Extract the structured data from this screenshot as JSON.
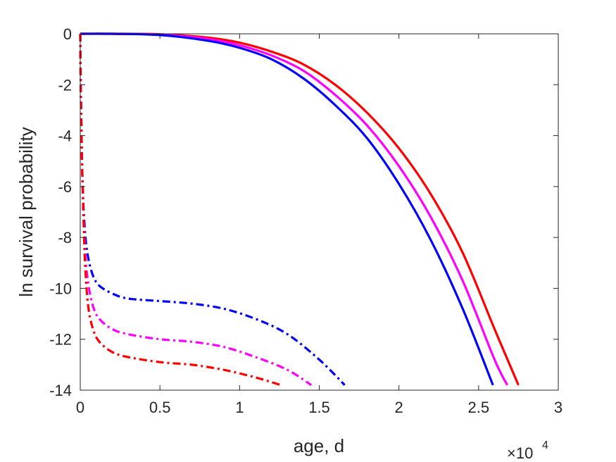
{
  "chart_data": {
    "type": "line",
    "xlabel": "age, d",
    "ylabel": "ln survival probability",
    "x_multiplier_label": "×10",
    "x_multiplier_exponent": "4",
    "xlim": [
      0,
      30000
    ],
    "ylim": [
      -14,
      0
    ],
    "x_ticks": [
      0,
      5000,
      10000,
      15000,
      20000,
      25000,
      30000
    ],
    "x_tick_labels": [
      "0",
      "0.5",
      "1",
      "1.5",
      "2",
      "2.5",
      "3"
    ],
    "y_ticks": [
      0,
      -2,
      -4,
      -6,
      -8,
      -10,
      -12,
      -14
    ],
    "y_tick_labels": [
      "0",
      "-2",
      "-4",
      "-6",
      "-8",
      "-10",
      "-12",
      "-14"
    ],
    "grid": false,
    "series": [
      {
        "color": "#ff0000",
        "style": "solid",
        "x": [
          0,
          2000,
          5000,
          8000,
          10000,
          12000,
          14000,
          16000,
          18000,
          20000,
          22000,
          24000,
          26000,
          27500
        ],
        "y": [
          0,
          0,
          -0.02,
          -0.15,
          -0.35,
          -0.7,
          -1.2,
          -2.0,
          -3.1,
          -4.5,
          -6.3,
          -8.6,
          -11.6,
          -13.8
        ]
      },
      {
        "color": "#ff00ff",
        "style": "solid",
        "x": [
          0,
          2000,
          5000,
          8000,
          10000,
          12000,
          14000,
          16000,
          18000,
          20000,
          22000,
          24000,
          26000,
          26800
        ],
        "y": [
          0,
          0,
          -0.03,
          -0.2,
          -0.45,
          -0.85,
          -1.45,
          -2.4,
          -3.6,
          -5.2,
          -7.2,
          -9.7,
          -12.8,
          -13.8
        ]
      },
      {
        "color": "#0000ff",
        "style": "solid",
        "x": [
          0,
          2000,
          5000,
          8000,
          10000,
          12000,
          14000,
          16000,
          18000,
          20000,
          22000,
          24000,
          25900
        ],
        "y": [
          0,
          0,
          -0.05,
          -0.27,
          -0.55,
          -1.0,
          -1.75,
          -2.8,
          -4.1,
          -5.9,
          -8.1,
          -10.8,
          -13.8
        ]
      },
      {
        "color": "#0000ff",
        "style": "dashdot",
        "x": [
          0,
          30,
          80,
          150,
          300,
          500,
          800,
          1200,
          2000,
          3000,
          5000,
          7000,
          9000,
          11000,
          13000,
          15000,
          16600
        ],
        "y": [
          0,
          -2,
          -4,
          -6,
          -7.8,
          -8.8,
          -9.5,
          -9.9,
          -10.2,
          -10.4,
          -10.5,
          -10.6,
          -10.8,
          -11.2,
          -11.8,
          -12.8,
          -13.8
        ]
      },
      {
        "color": "#ff00ff",
        "style": "dashdot",
        "x": [
          0,
          30,
          80,
          150,
          300,
          500,
          800,
          1200,
          2000,
          3000,
          5000,
          7000,
          9000,
          11000,
          13000,
          14500
        ],
        "y": [
          0,
          -2,
          -4,
          -6,
          -8.5,
          -9.8,
          -10.7,
          -11.2,
          -11.6,
          -11.8,
          -12.0,
          -12.1,
          -12.3,
          -12.7,
          -13.2,
          -13.8
        ]
      },
      {
        "color": "#ff0000",
        "style": "dashdot",
        "x": [
          0,
          30,
          80,
          150,
          300,
          500,
          800,
          1200,
          2000,
          3000,
          5000,
          7000,
          9000,
          11000,
          12600
        ],
        "y": [
          0,
          -2,
          -4,
          -6,
          -9.0,
          -10.7,
          -11.6,
          -12.1,
          -12.5,
          -12.7,
          -12.9,
          -13.0,
          -13.2,
          -13.5,
          -13.8
        ]
      }
    ]
  }
}
